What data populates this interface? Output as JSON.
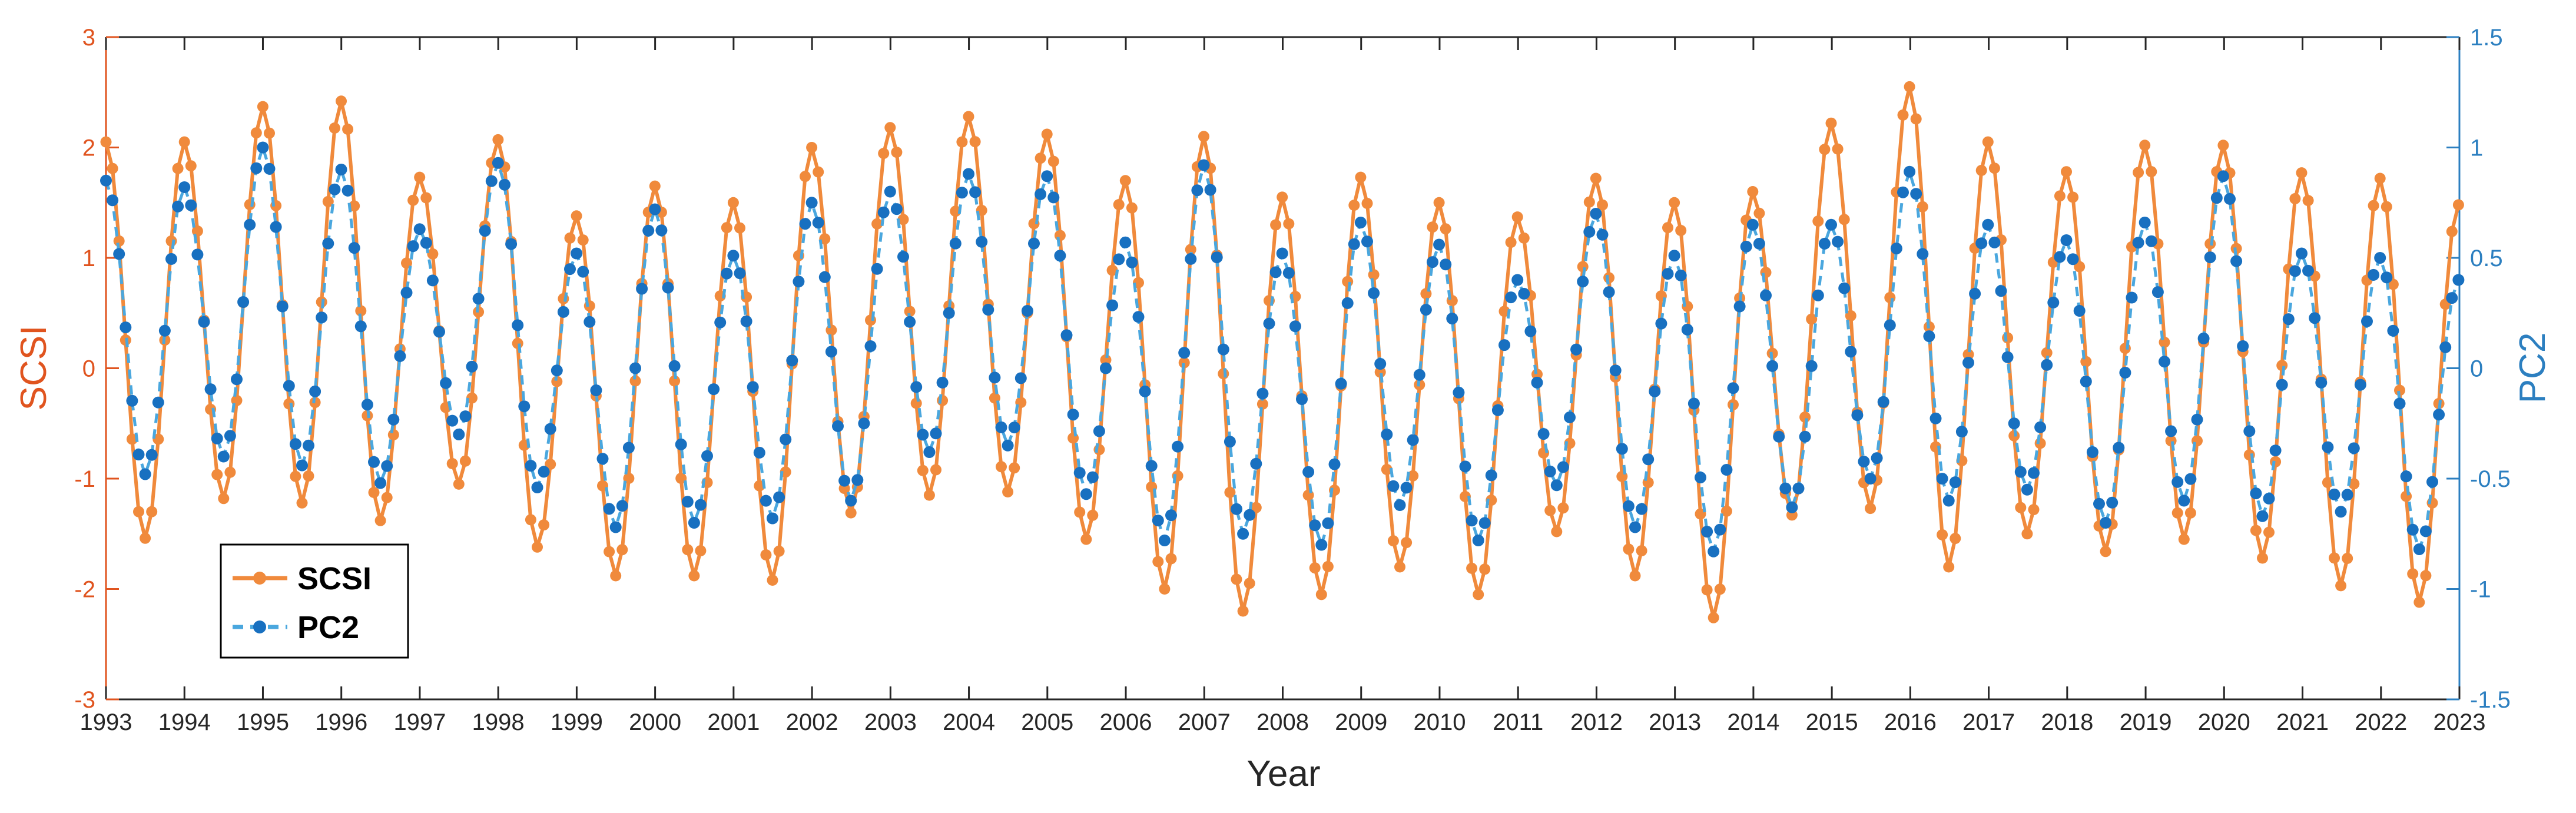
{
  "chart_data": {
    "type": "line",
    "title": "",
    "xlabel": "Year",
    "ylabel_left": "SCSI",
    "ylabel_right": "PC2",
    "xlim": [
      1993,
      2023
    ],
    "ylim_left": [
      -3,
      3
    ],
    "ylim_right": [
      -1.5,
      1.5
    ],
    "x_ticks": [
      "1993",
      "1994",
      "1995",
      "1996",
      "1997",
      "1998",
      "1999",
      "2000",
      "2001",
      "2002",
      "2003",
      "2004",
      "2005",
      "2006",
      "2007",
      "2008",
      "2009",
      "2010",
      "2011",
      "2012",
      "2013",
      "2014",
      "2015",
      "2016",
      "2017",
      "2018",
      "2019",
      "2020",
      "2021",
      "2022",
      "2023"
    ],
    "y_ticks_left": [
      "3",
      "2",
      "1",
      "0",
      "-1",
      "-2",
      "-3"
    ],
    "y_ticks_right": [
      "1.5",
      "1",
      "0.5",
      "0",
      "-0.5",
      "-1",
      "-1.5"
    ],
    "grid": false,
    "legend_position": "bottom-left",
    "colors": {
      "SCSI": "#f08a3c",
      "PC2": "#1870c0",
      "PC2_line": "#4aa7de",
      "left_axis": "#e0541f",
      "right_axis": "#2c7fc0"
    },
    "series": [
      {
        "name": "SCSI",
        "axis": "left",
        "style": "solid line with circle markers",
        "start_year": 1993,
        "step": 0.0833,
        "peaks": [
          2.05,
          2.05,
          2.37,
          2.42,
          1.73,
          2.07,
          1.38,
          1.65,
          1.5,
          2.0,
          2.18,
          2.28,
          2.12,
          1.7,
          2.1,
          1.55,
          1.73,
          1.5,
          1.37,
          1.72,
          1.5,
          1.6,
          2.22,
          2.55,
          2.05,
          1.78,
          2.02,
          2.02,
          1.77,
          1.72
        ],
        "troughs": [
          -1.54,
          -1.18,
          -1.22,
          -1.38,
          -1.05,
          -1.62,
          -1.88,
          -1.88,
          -1.92,
          -1.31,
          -1.15,
          -1.12,
          -1.55,
          -2.0,
          -2.2,
          -2.05,
          -1.8,
          -2.05,
          -1.48,
          -1.88,
          -2.26,
          -1.33,
          -1.27,
          -1.8,
          -1.5,
          -1.66,
          -1.55,
          -1.72,
          -1.97,
          -2.12
        ],
        "end_value": 1.48
      },
      {
        "name": "PC2",
        "axis": "right",
        "style": "dashed line with filled circle markers",
        "start_year": 1993,
        "step": 0.0833,
        "peaks": [
          0.85,
          0.82,
          1.0,
          0.9,
          0.63,
          0.93,
          0.52,
          0.72,
          0.51,
          0.75,
          0.8,
          0.88,
          0.87,
          0.57,
          0.92,
          0.52,
          0.66,
          0.56,
          0.4,
          0.7,
          0.51,
          0.65,
          0.65,
          0.89,
          0.65,
          0.58,
          0.66,
          0.87,
          0.52,
          0.5
        ],
        "troughs": [
          -0.48,
          -0.4,
          -0.44,
          -0.52,
          -0.3,
          -0.54,
          -0.72,
          -0.7,
          -0.68,
          -0.6,
          -0.38,
          -0.35,
          -0.57,
          -0.78,
          -0.75,
          -0.8,
          -0.62,
          -0.78,
          -0.53,
          -0.72,
          -0.83,
          -0.63,
          -0.5,
          -0.6,
          -0.55,
          -0.7,
          -0.6,
          -0.67,
          -0.65,
          -0.82
        ],
        "end_value": 0.4
      }
    ]
  },
  "legend": {
    "items": [
      {
        "label": "SCSI"
      },
      {
        "label": "PC2"
      }
    ]
  }
}
